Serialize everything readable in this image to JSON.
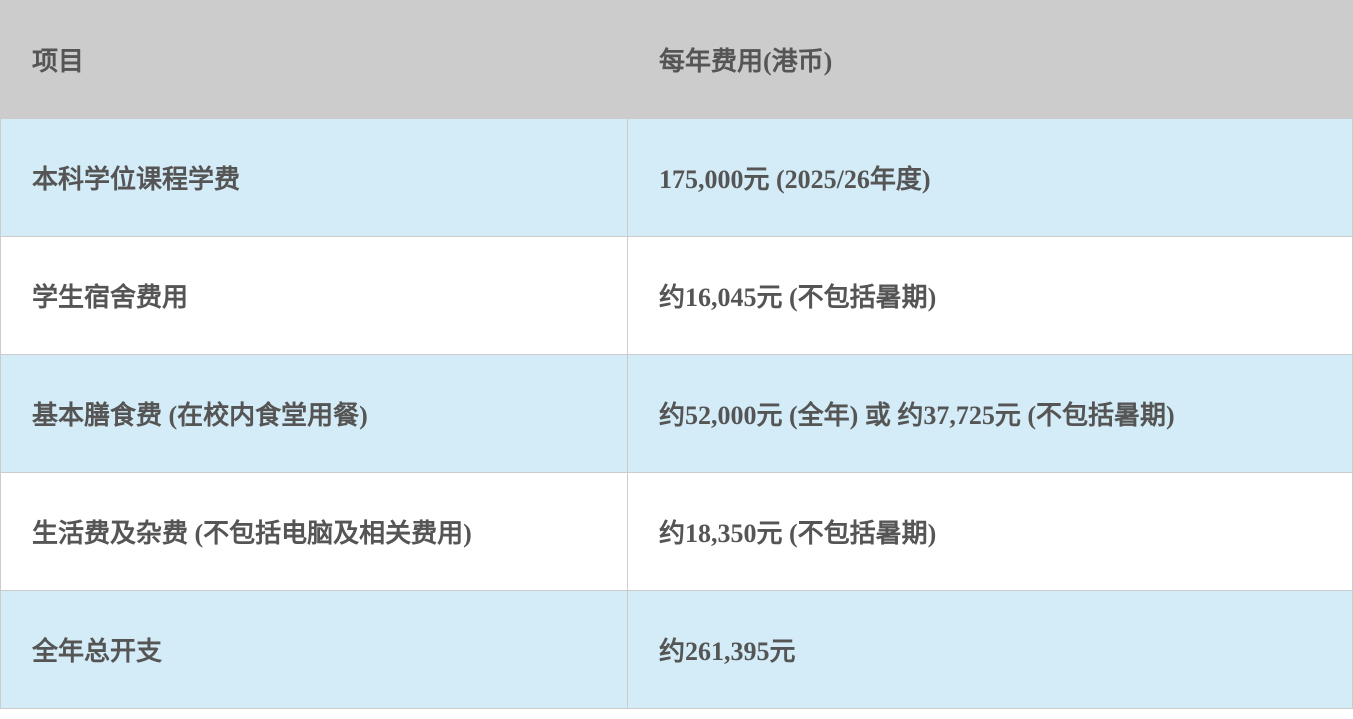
{
  "table": {
    "headers": [
      "项目",
      "每年费用(港币)"
    ],
    "rows": [
      {
        "item": "本科学位课程学费",
        "cost": "175,000元 (2025/26年度)"
      },
      {
        "item": "学生宿舍费用",
        "cost": "约16,045元 (不包括暑期)"
      },
      {
        "item": "基本膳食费 (在校内食堂用餐)",
        "cost": "约52,000元 (全年) 或 约37,725元 (不包括暑期)"
      },
      {
        "item": "生活费及杂费 (不包括电脑及相关费用)",
        "cost": "约18,350元 (不包括暑期)"
      },
      {
        "item": "全年总开支",
        "cost": "约261,395元"
      }
    ]
  },
  "colors": {
    "header_bg": "#cccccc",
    "alt_row_bg": "#d4ecf7",
    "text": "#555555"
  }
}
